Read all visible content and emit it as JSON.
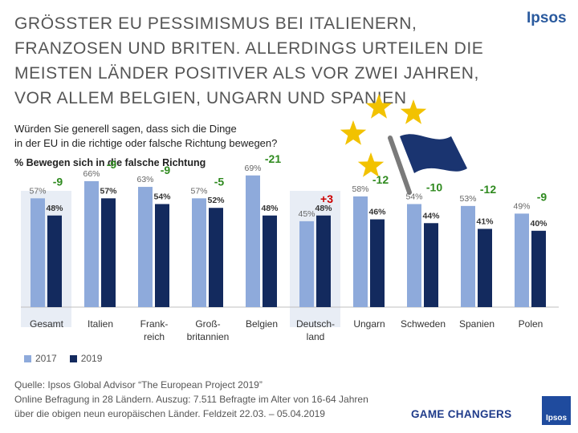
{
  "title": "GRÖSSTER EU PESSIMISMUS  BEI ITALIENERN, FRANZOSEN UND BRITEN. ALLERDINGS URTEILEN DIE MEISTEN LÄNDER POSITIVER ALS VOR ZWEI JAHREN, VOR ALLEM BELGIEN, UNGARN UND SPANIEN",
  "brand": "Ipsos",
  "question_line1": "Würden Sie generell sagen, dass sich die Dinge",
  "question_line2": "in der EU in die richtige oder falsche Richtung bewegen?",
  "source_lines": [
    "Quelle: Ipsos Global Advisor “The European Project 2019”",
    "Online Befragung in 28 Ländern. Auszug: 7.511 Befragte im Alter von 16-64 Jahren",
    "über die obigen neun europäischen Länder. Feldzeit 22.03. – 05.04.2019"
  ],
  "footer_tag": "GAME CHANGERS",
  "logo_text": "Ipsos",
  "chart_data": {
    "type": "bar",
    "title": "% Bewegen sich in die falsche Richtung",
    "categories": [
      [
        "Gesamt"
      ],
      [
        "Italien"
      ],
      [
        "Frank-",
        "reich"
      ],
      [
        "Groß-",
        "britannien"
      ],
      [
        "Belgien"
      ],
      [
        "Deutsch-",
        "land"
      ],
      [
        "Ungarn"
      ],
      [
        "Schweden"
      ],
      [
        "Spanien"
      ],
      [
        "Polen"
      ]
    ],
    "series": [
      {
        "name": "2017",
        "color": "#8eaadb",
        "values": [
          57,
          66,
          63,
          57,
          69,
          45,
          58,
          54,
          53,
          49
        ],
        "labels": [
          "57%",
          "66%",
          "63%",
          "57%",
          "69%",
          "45%",
          "58%",
          "54%",
          "53%",
          "49%"
        ]
      },
      {
        "name": "2019",
        "color": "#132a5e",
        "values": [
          48,
          57,
          54,
          52,
          48,
          48,
          46,
          44,
          41,
          40
        ],
        "labels": [
          "48%",
          "57%",
          "54%",
          "52%",
          "48%",
          "48%",
          "46%",
          "44%",
          "41%",
          "40%"
        ]
      }
    ],
    "changes": [
      "-9",
      "-9",
      "-9",
      "-5",
      "-21",
      "+3",
      "-12",
      "-10",
      "-12",
      "-9"
    ],
    "change_colors": {
      "negative": "#2f8a1f",
      "positive": "#cc0000"
    },
    "highlighted_categories": [
      "Gesamt",
      "Deutsch-land"
    ],
    "highlight_color": "#e8edf5",
    "ylim": [
      0,
      80
    ],
    "legend_placement": "bottom-left"
  }
}
